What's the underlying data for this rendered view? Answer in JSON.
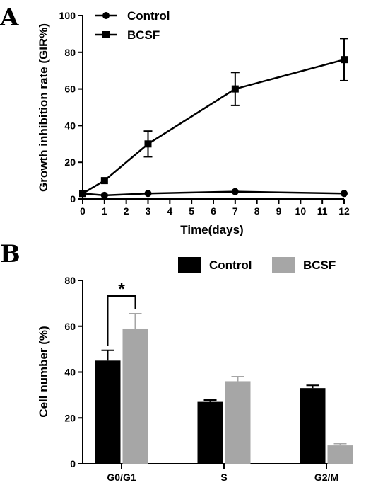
{
  "chart_data": [
    {
      "panel": "A",
      "type": "line",
      "xlabel": "Time(days)",
      "ylabel": "Growth inhibition rate (GIR%)",
      "xlim": [
        0,
        12
      ],
      "ylim": [
        0,
        100
      ],
      "xticks": [
        0,
        1,
        2,
        3,
        4,
        5,
        6,
        7,
        8,
        9,
        10,
        11,
        12
      ],
      "yticks": [
        0,
        20,
        40,
        60,
        80,
        100
      ],
      "legend_position": "top-left",
      "series": [
        {
          "name": "Control",
          "marker": "circle",
          "color": "#000000",
          "x": [
            0,
            1,
            3,
            7,
            12
          ],
          "y": [
            3,
            2,
            3,
            4,
            3
          ],
          "err": [
            0,
            0,
            0,
            0,
            0
          ]
        },
        {
          "name": "BCSF",
          "marker": "square",
          "color": "#000000",
          "x": [
            0,
            1,
            3,
            7,
            12
          ],
          "y": [
            3,
            10,
            30,
            60,
            76
          ],
          "err": [
            0,
            0,
            7,
            9,
            11.5
          ]
        }
      ]
    },
    {
      "panel": "B",
      "type": "bar",
      "xlabel": "",
      "ylabel": "Cell number (%)",
      "ylim": [
        0,
        80
      ],
      "yticks": [
        0,
        20,
        40,
        60,
        80
      ],
      "categories": [
        "G0/G1",
        "S",
        "G2/M"
      ],
      "legend_position": "top-right",
      "series": [
        {
          "name": "Control",
          "color": "#000000",
          "values": [
            45,
            27,
            33
          ],
          "err": [
            4.5,
            0.8,
            1.2
          ]
        },
        {
          "name": "BCSF",
          "color": "#a6a6a6",
          "values": [
            59,
            36,
            8
          ],
          "err": [
            6.5,
            2,
            0.8
          ]
        }
      ],
      "annotations": [
        {
          "text": "*",
          "between": [
            "Control",
            "BCSF"
          ],
          "category": "G0/G1"
        }
      ]
    }
  ]
}
